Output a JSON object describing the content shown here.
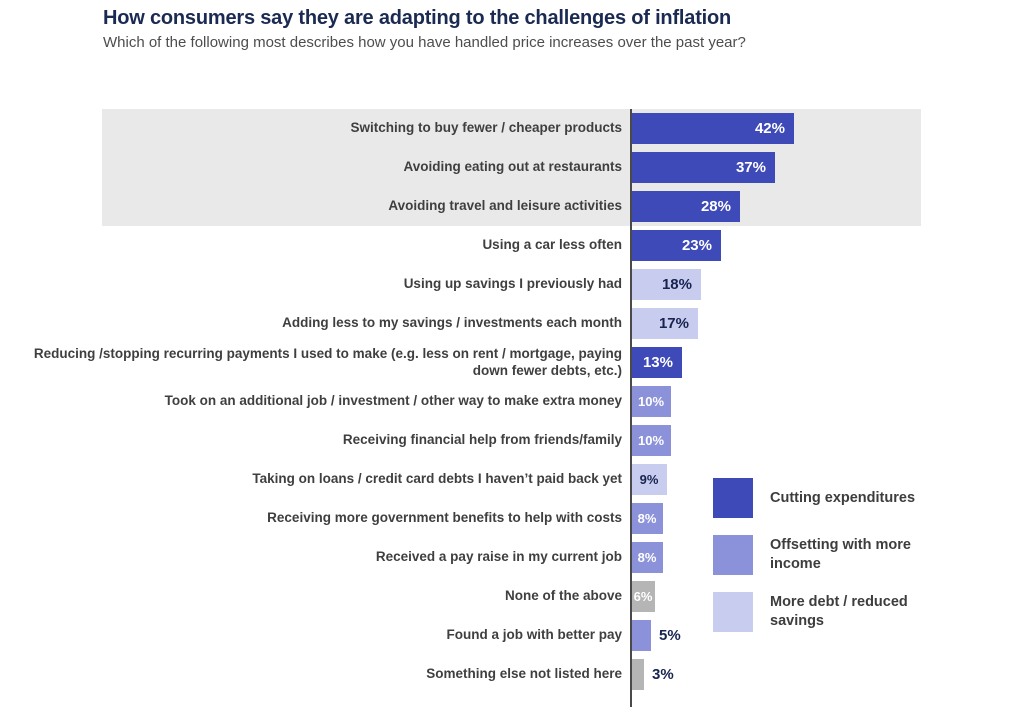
{
  "header": {
    "title": "How consumers say they are adapting to the challenges of inflation",
    "subtitle": "Which of the following most describes how you have handled price increases over the past year?"
  },
  "colors": {
    "cutting": "#3e4ab8",
    "income": "#8b92da",
    "debt": "#c8ccee",
    "none": "#b5b5b5",
    "highlight_band": "#e9e9e9",
    "navy_text": "#172450",
    "axis": "#4a4a4a"
  },
  "chart_data": {
    "type": "bar",
    "orientation": "horizontal",
    "title": "How consumers say they are adapting to the challenges of inflation",
    "subtitle": "Which of the following most describes how you have handled price increases over the past year?",
    "xlabel": "",
    "ylabel": "",
    "xlim": [
      0,
      45
    ],
    "grid": false,
    "legend_position": "bottom-right",
    "highlighted_rows": [
      0,
      1,
      2
    ],
    "categories": [
      "Switching to buy fewer / cheaper products",
      "Avoiding eating out at restaurants",
      "Avoiding travel and leisure activities",
      "Using a car less often",
      "Using up savings I previously had",
      "Adding less to my savings / investments each month",
      "Reducing /stopping recurring payments I used to make (e.g. less on rent / mortgage, paying down fewer debts, etc.)",
      "Took on an additional job / investment / other way to make extra money",
      "Receiving financial help from friends/family",
      "Taking on loans / credit card debts I haven’t paid back yet",
      "Receiving more government benefits to help with costs",
      "Received a pay raise in my current job",
      "None of the above",
      "Found a job with better pay",
      "Something else not listed here"
    ],
    "values": [
      42,
      37,
      28,
      23,
      18,
      17,
      13,
      10,
      10,
      9,
      8,
      8,
      6,
      5,
      3
    ],
    "bars": [
      {
        "label": "Switching to buy fewer / cheaper products",
        "value": 42,
        "display": "42%",
        "group": "cutting",
        "value_label": {
          "position": "inside",
          "color": "white"
        }
      },
      {
        "label": "Avoiding eating out at restaurants",
        "value": 37,
        "display": "37%",
        "group": "cutting",
        "value_label": {
          "position": "inside",
          "color": "white"
        }
      },
      {
        "label": "Avoiding travel and leisure activities",
        "value": 28,
        "display": "28%",
        "group": "cutting",
        "value_label": {
          "position": "inside",
          "color": "white"
        }
      },
      {
        "label": "Using a car less often",
        "value": 23,
        "display": "23%",
        "group": "cutting",
        "value_label": {
          "position": "inside",
          "color": "white"
        }
      },
      {
        "label": "Using up savings I previously had",
        "value": 18,
        "display": "18%",
        "group": "debt",
        "value_label": {
          "position": "inside",
          "color": "navy"
        }
      },
      {
        "label": "Adding less to my savings / investments each month",
        "value": 17,
        "display": "17%",
        "group": "debt",
        "value_label": {
          "position": "inside",
          "color": "navy"
        }
      },
      {
        "label": "Reducing /stopping recurring payments I used to make (e.g. less on rent / mortgage, paying down fewer debts, etc.)",
        "value": 13,
        "display": "13%",
        "group": "cutting",
        "value_label": {
          "position": "inside",
          "color": "white"
        }
      },
      {
        "label": "Took on an additional job / investment / other way to make extra money",
        "value": 10,
        "display": "10%",
        "group": "income",
        "value_label": {
          "position": "inside",
          "color": "white"
        }
      },
      {
        "label": "Receiving financial help from friends/family",
        "value": 10,
        "display": "10%",
        "group": "income",
        "value_label": {
          "position": "inside",
          "color": "white"
        }
      },
      {
        "label": "Taking on loans / credit card debts I haven’t paid back yet",
        "value": 9,
        "display": "9%",
        "group": "debt",
        "value_label": {
          "position": "inside",
          "color": "navy"
        }
      },
      {
        "label": "Receiving more government benefits to help with costs",
        "value": 8,
        "display": "8%",
        "group": "income",
        "value_label": {
          "position": "inside",
          "color": "white"
        }
      },
      {
        "label": "Received a pay raise in my current job",
        "value": 8,
        "display": "8%",
        "group": "income",
        "value_label": {
          "position": "inside",
          "color": "white"
        }
      },
      {
        "label": "None of the above",
        "value": 6,
        "display": "6%",
        "group": "none",
        "value_label": {
          "position": "inside",
          "color": "white"
        }
      },
      {
        "label": "Found a job with better pay",
        "value": 5,
        "display": "5%",
        "group": "income",
        "value_label": {
          "position": "outside",
          "color": "navy"
        }
      },
      {
        "label": "Something else not listed here",
        "value": 3,
        "display": "3%",
        "group": "none",
        "value_label": {
          "position": "outside",
          "color": "navy"
        }
      }
    ],
    "legend": [
      {
        "label": "Cutting expenditures",
        "group": "cutting",
        "color": "#3e4ab8"
      },
      {
        "label": "Offsetting with more income",
        "group": "income",
        "color": "#8b92da"
      },
      {
        "label": "More debt / reduced savings",
        "group": "debt",
        "color": "#c8ccee"
      }
    ]
  }
}
